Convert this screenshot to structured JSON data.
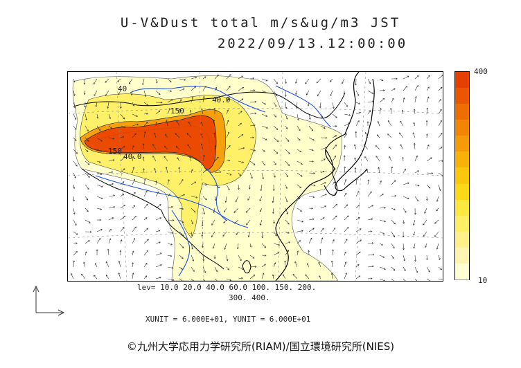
{
  "title": {
    "line1": "U-V&Dust total m/s&ug/m3 JST",
    "line2": "2022/09/13.12:00:00"
  },
  "colorbar": {
    "max_label": "400",
    "min_label": "10",
    "colors": [
      "#ffffd4",
      "#fff5b0",
      "#fff18a",
      "#ffee66",
      "#fde840",
      "#fbd818",
      "#fac70c",
      "#f8b00a",
      "#f59a08",
      "#f28406",
      "#ee6e04",
      "#ea5602",
      "#e64000"
    ]
  },
  "levels": {
    "line1": "lev= 10.0 20.0 40.0 60.0 100. 150. 200.",
    "line2": "300. 400."
  },
  "units": {
    "text": "XUNIT = 6.000E+01, YUNIT = 6.000E+01"
  },
  "map_labels": [
    "40",
    "40.0",
    "150",
    "150",
    "40.0"
  ],
  "credit": "©九州大学応用力学研究所(RIAM)/国立環境研究所(NIES)"
}
